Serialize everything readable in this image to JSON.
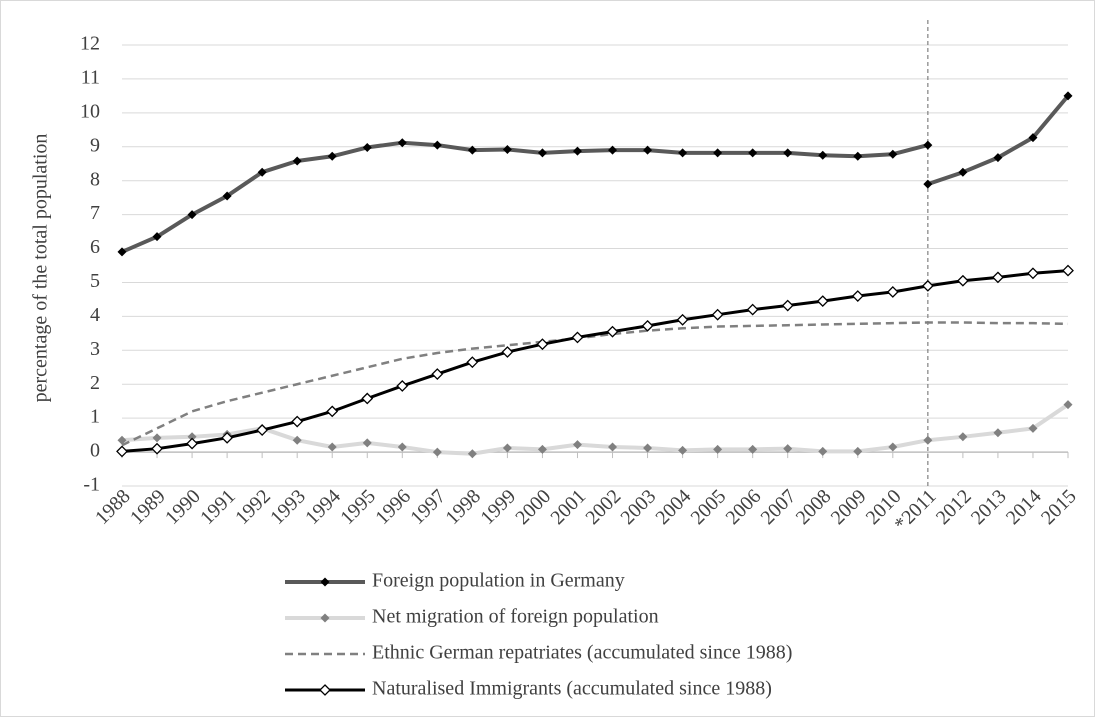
{
  "chart_data": {
    "type": "line",
    "y_label": "percentage of the total population",
    "categories": [
      "1988",
      "1989",
      "1990",
      "1991",
      "1992",
      "1993",
      "1994",
      "1995",
      "1996",
      "1997",
      "1998",
      "1999",
      "2000",
      "2001",
      "2002",
      "2003",
      "2004",
      "2005",
      "2006",
      "2007",
      "2008",
      "2009",
      "2010",
      "*2011",
      "2012",
      "2013",
      "2014",
      "2015"
    ],
    "ylim": [
      -1,
      12
    ],
    "yticks": [
      -1,
      0,
      1,
      2,
      3,
      4,
      5,
      6,
      7,
      8,
      9,
      10,
      11,
      12
    ],
    "grid": true,
    "vline": "*2011",
    "legend": "bottom",
    "series": [
      {
        "name": "Foreign population in Germany",
        "color": "#595959",
        "marker_color": "#000000",
        "marker": "filled",
        "values": [
          5.9,
          6.35,
          7.0,
          7.55,
          8.25,
          8.58,
          8.72,
          8.98,
          9.12,
          9.05,
          8.9,
          8.92,
          8.82,
          8.87,
          8.9,
          8.9,
          8.82,
          8.82,
          8.82,
          8.82,
          8.75,
          8.72,
          8.78,
          9.05,
          null,
          null,
          null,
          null
        ],
        "values_revised": [
          null,
          null,
          null,
          null,
          null,
          null,
          null,
          null,
          null,
          null,
          null,
          null,
          null,
          null,
          null,
          null,
          null,
          null,
          null,
          null,
          null,
          null,
          null,
          7.9,
          8.25,
          8.68,
          9.27,
          10.5
        ]
      },
      {
        "name": "Net migration of foreign population",
        "color": "#d9d9d9",
        "marker_color": "#808080",
        "marker": "filled",
        "values": [
          0.35,
          0.42,
          0.45,
          0.52,
          0.7,
          0.35,
          0.15,
          0.27,
          0.15,
          0.0,
          -0.05,
          0.12,
          0.08,
          0.22,
          0.15,
          0.12,
          0.05,
          0.08,
          0.08,
          0.1,
          0.02,
          0.02,
          0.15,
          0.35,
          0.45,
          0.57,
          0.7,
          1.4
        ]
      },
      {
        "name": "Ethnic German repatriates (accumulated since 1988)",
        "color": "#808080",
        "dashed": true,
        "values": [
          0.2,
          0.7,
          1.2,
          1.5,
          1.75,
          2.0,
          2.25,
          2.5,
          2.75,
          2.92,
          3.05,
          3.15,
          3.25,
          3.35,
          3.48,
          3.58,
          3.65,
          3.7,
          3.72,
          3.74,
          3.76,
          3.78,
          3.8,
          3.82,
          3.82,
          3.8,
          3.8,
          3.78
        ]
      },
      {
        "name": "Naturalised Immigrants (accumulated since 1988)",
        "color": "#000000",
        "marker_color": "#ffffff",
        "marker": "hollow",
        "values": [
          0.02,
          0.1,
          0.25,
          0.42,
          0.65,
          0.9,
          1.2,
          1.58,
          1.95,
          2.3,
          2.65,
          2.95,
          3.18,
          3.38,
          3.55,
          3.72,
          3.9,
          4.05,
          4.2,
          4.32,
          4.45,
          4.6,
          4.72,
          4.9,
          5.05,
          5.15,
          5.27,
          5.35
        ]
      }
    ]
  }
}
